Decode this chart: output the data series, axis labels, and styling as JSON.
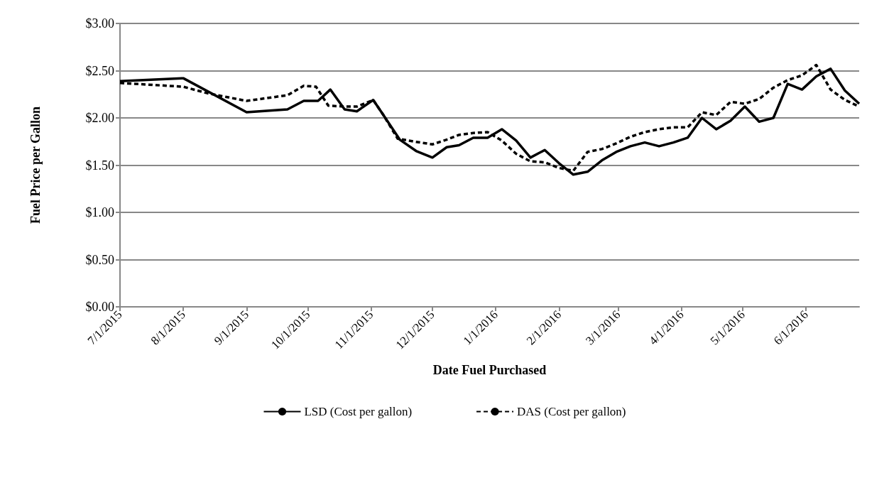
{
  "chart_data": {
    "type": "line",
    "xlabel": "Date Fuel Purchased",
    "ylabel": "Fuel Price per Gallon",
    "xlim": [
      "2015-07-01",
      "2016-06-27"
    ],
    "xticks": [
      {
        "value": "2015-07-01",
        "label": "7/1/2015"
      },
      {
        "value": "2015-08-01",
        "label": "8/1/2015"
      },
      {
        "value": "2015-09-01",
        "label": "9/1/2015"
      },
      {
        "value": "2015-10-01",
        "label": "10/1/2015"
      },
      {
        "value": "2015-11-01",
        "label": "11/1/2015"
      },
      {
        "value": "2015-12-01",
        "label": "12/1/2015"
      },
      {
        "value": "2016-01-01",
        "label": "1/1/2016"
      },
      {
        "value": "2016-02-01",
        "label": "2/1/2016"
      },
      {
        "value": "2016-03-01",
        "label": "3/1/2016"
      },
      {
        "value": "2016-04-01",
        "label": "4/1/2016"
      },
      {
        "value": "2016-05-01",
        "label": "5/1/2016"
      },
      {
        "value": "2016-06-01",
        "label": "6/1/2016"
      }
    ],
    "ylim": [
      0,
      3
    ],
    "yticks": [
      {
        "value": 0,
        "label": "$0.00"
      },
      {
        "value": 0.5,
        "label": "$0.50"
      },
      {
        "value": 1,
        "label": "$1.00"
      },
      {
        "value": 1.5,
        "label": "$1.50"
      },
      {
        "value": 2,
        "label": "$2.00"
      },
      {
        "value": 2.5,
        "label": "$2.50"
      },
      {
        "value": 3,
        "label": "$3.00"
      }
    ],
    "grid": "y",
    "legend": "bottom",
    "marker": "none",
    "series": [
      {
        "name": "LSD (Cost per gallon)",
        "color": "#000000",
        "line_style": "solid",
        "x": [
          "2015-07-01",
          "2015-08-01",
          "2015-09-01",
          "2015-09-21",
          "2015-09-29",
          "2015-10-06",
          "2015-10-12",
          "2015-10-19",
          "2015-10-25",
          "2015-11-02",
          "2015-11-07",
          "2015-11-15",
          "2015-11-23",
          "2015-12-01",
          "2015-12-08",
          "2015-12-14",
          "2015-12-21",
          "2015-12-28",
          "2016-01-04",
          "2016-01-11",
          "2016-01-18",
          "2016-01-25",
          "2016-02-01",
          "2016-02-08",
          "2016-02-15",
          "2016-02-22",
          "2016-02-29",
          "2016-03-07",
          "2016-03-14",
          "2016-03-21",
          "2016-03-28",
          "2016-04-04",
          "2016-04-11",
          "2016-04-18",
          "2016-04-25",
          "2016-05-02",
          "2016-05-09",
          "2016-05-16",
          "2016-05-23",
          "2016-05-30",
          "2016-06-06",
          "2016-06-13",
          "2016-06-20",
          "2016-06-27"
        ],
        "values": [
          2.39,
          2.42,
          2.06,
          2.09,
          2.18,
          2.18,
          2.3,
          2.09,
          2.07,
          2.19,
          2.03,
          1.77,
          1.65,
          1.58,
          1.69,
          1.71,
          1.79,
          1.79,
          1.88,
          1.76,
          1.58,
          1.66,
          1.52,
          1.4,
          1.43,
          1.55,
          1.64,
          1.7,
          1.74,
          1.7,
          1.74,
          1.79,
          2.0,
          1.88,
          1.97,
          2.12,
          1.96,
          2.0,
          2.36,
          2.3,
          2.44,
          2.52,
          2.29,
          2.15
        ]
      },
      {
        "name": "DAS (Cost per gallon)",
        "color": "#000000",
        "line_style": "dashed",
        "x": [
          "2015-07-01",
          "2015-08-01",
          "2015-08-13",
          "2015-09-01",
          "2015-09-21",
          "2015-09-29",
          "2015-10-05",
          "2015-10-11",
          "2015-10-19",
          "2015-10-25",
          "2015-11-02",
          "2015-11-07",
          "2015-11-14",
          "2015-11-22",
          "2015-12-01",
          "2015-12-08",
          "2015-12-14",
          "2015-12-21",
          "2015-12-28",
          "2016-01-04",
          "2016-01-11",
          "2016-01-18",
          "2016-01-25",
          "2016-02-01",
          "2016-02-08",
          "2016-02-15",
          "2016-02-22",
          "2016-02-29",
          "2016-03-07",
          "2016-03-14",
          "2016-03-21",
          "2016-03-28",
          "2016-04-04",
          "2016-04-11",
          "2016-04-18",
          "2016-04-25",
          "2016-05-02",
          "2016-05-09",
          "2016-05-16",
          "2016-05-23",
          "2016-05-30",
          "2016-06-06",
          "2016-06-13",
          "2016-06-20",
          "2016-06-27"
        ],
        "values": [
          2.37,
          2.33,
          2.26,
          2.18,
          2.24,
          2.34,
          2.33,
          2.13,
          2.12,
          2.12,
          2.19,
          2.03,
          1.78,
          1.75,
          1.72,
          1.77,
          1.82,
          1.84,
          1.85,
          1.76,
          1.62,
          1.54,
          1.53,
          1.47,
          1.44,
          1.64,
          1.67,
          1.73,
          1.8,
          1.85,
          1.88,
          1.9,
          1.9,
          2.06,
          2.03,
          2.17,
          2.15,
          2.2,
          2.32,
          2.4,
          2.45,
          2.56,
          2.3,
          2.19,
          2.12
        ]
      }
    ]
  }
}
